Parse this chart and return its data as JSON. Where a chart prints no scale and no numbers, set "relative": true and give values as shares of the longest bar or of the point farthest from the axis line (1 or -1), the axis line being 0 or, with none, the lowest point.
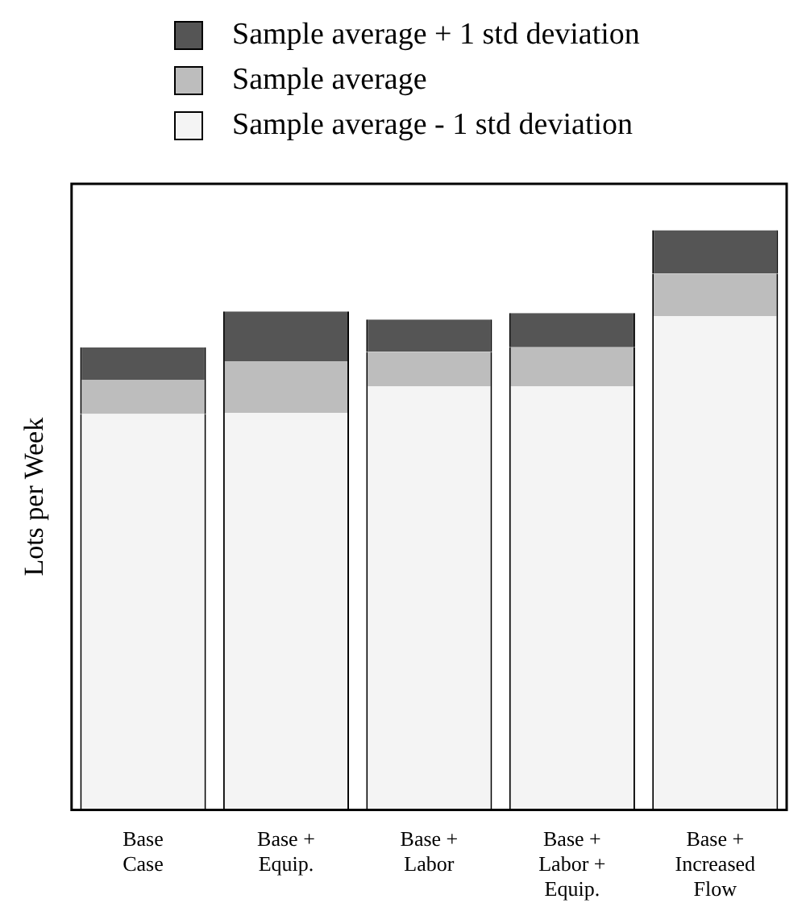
{
  "chart_data": {
    "type": "bar",
    "stacked": true,
    "relative": true,
    "ylabel": "Lots per Week",
    "legend": "top",
    "categories": [
      "Base\nCase",
      "Base +\nEquip.",
      "Base +\nLabor",
      "Base +\nLabor +\nEquip.",
      "Base +\nIncreased\nFlow"
    ],
    "series": [
      {
        "name": "Sample average - 1 std deviation",
        "color": "#f4f4f4",
        "values": [
          0.683,
          0.685,
          0.731,
          0.731,
          0.852
        ]
      },
      {
        "name": "Sample average",
        "color": "#bdbdbd",
        "values": [
          0.059,
          0.089,
          0.059,
          0.067,
          0.073
        ]
      },
      {
        "name": "Sample average + 1 std deviation",
        "color": "#555555",
        "values": [
          0.056,
          0.086,
          0.056,
          0.059,
          0.075
        ]
      }
    ]
  }
}
